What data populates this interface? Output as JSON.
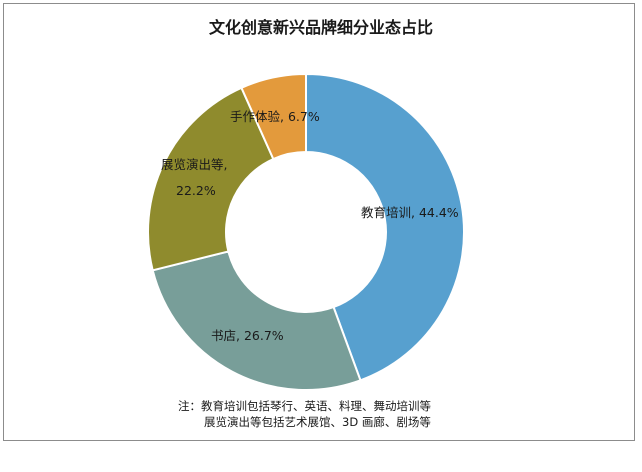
{
  "chart_data": {
    "type": "pie",
    "subtype": "donut",
    "title": "文化创意新兴品牌细分业态占比",
    "slices": [
      {
        "name": "教育培训",
        "value": 44.4,
        "label": "44.4%",
        "color": "#57a0cf"
      },
      {
        "name": "书店",
        "value": 26.7,
        "label": "26.7%",
        "color": "#789e99"
      },
      {
        "name": "展览演出等",
        "value": 22.2,
        "label": "22.2%",
        "color": "#8f8b2d"
      },
      {
        "name": "手作体验",
        "value": 6.7,
        "label": "6.7%",
        "color": "#e39a3c"
      }
    ],
    "start": "12 o'clock",
    "direction": "clockwise"
  },
  "note": {
    "line1": "注：教育培训包括琴行、英语、料理、舞动培训等",
    "line2": "展览演出等包括艺术展馆、3D 画廊、剧场等"
  }
}
